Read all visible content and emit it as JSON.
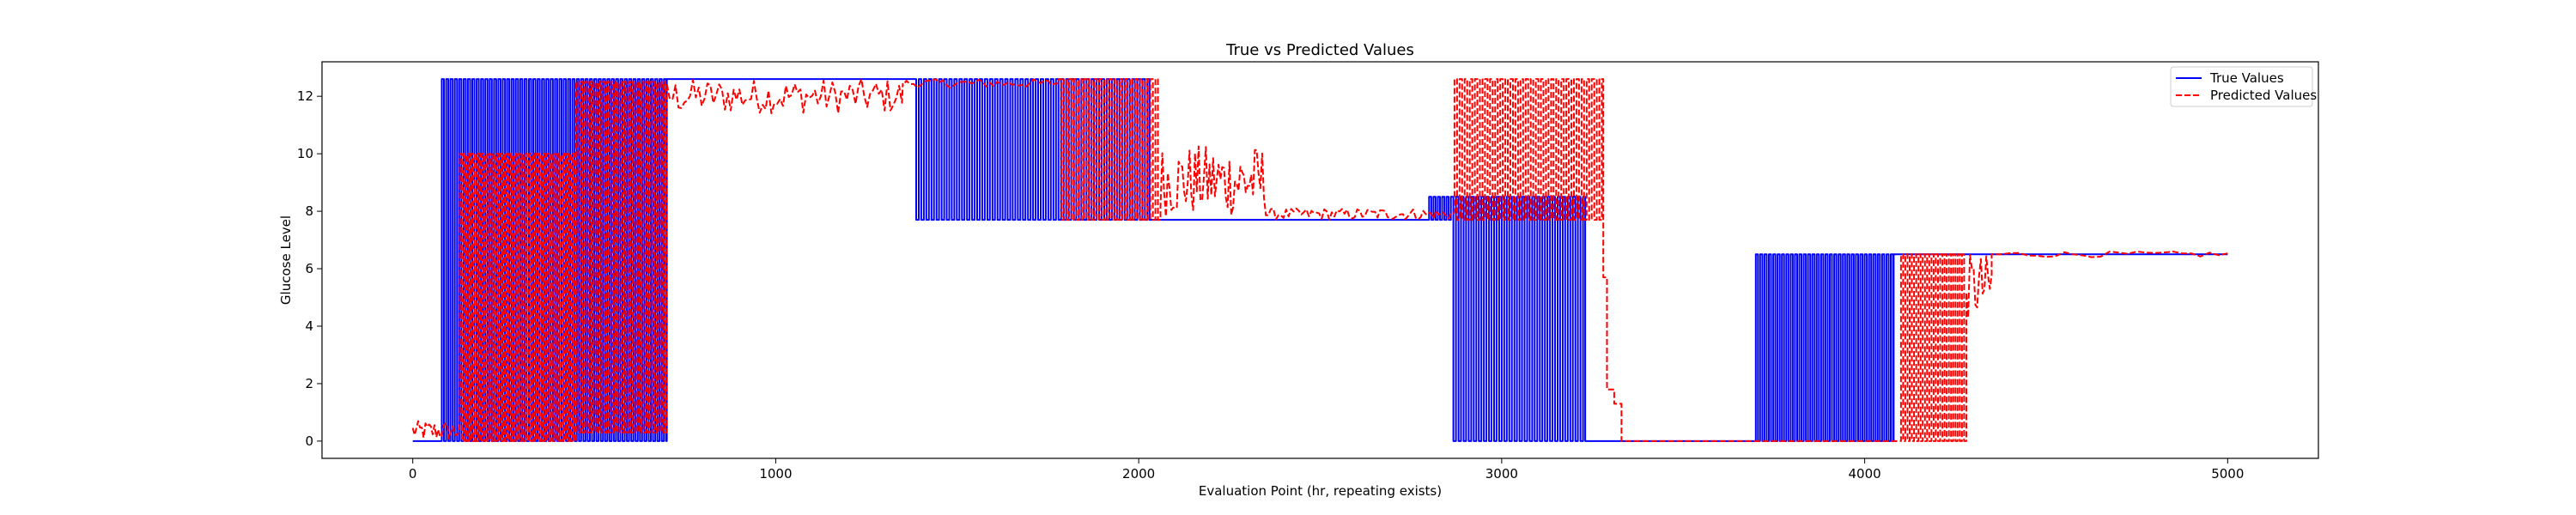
{
  "chart_data": {
    "type": "line",
    "title": "True vs Predicted Values",
    "xlabel": "Evaluation Point (hr, repeating exists)",
    "ylabel": "Glucose Level",
    "xlim": [
      -250,
      5250
    ],
    "ylim": [
      -0.6,
      13.2
    ],
    "xticks": [
      0,
      1000,
      2000,
      3000,
      4000,
      5000
    ],
    "yticks": [
      0,
      2,
      4,
      6,
      8,
      10,
      12
    ],
    "grid": false,
    "legend_position": "top-right",
    "series": [
      {
        "name": "True Values",
        "color": "#0000ff",
        "style": "solid",
        "segments": [
          {
            "x_start": 0,
            "x_end": 80,
            "pattern": "flat",
            "level": 0
          },
          {
            "x_start": 80,
            "x_end": 700,
            "pattern": "oscillate",
            "low": 0,
            "high": 12.6,
            "period": 12
          },
          {
            "x_start": 700,
            "x_end": 1380,
            "pattern": "flat",
            "level": 12.6
          },
          {
            "x_start": 1380,
            "x_end": 2030,
            "pattern": "oscillate",
            "low": 7.7,
            "high": 12.6,
            "period": 14
          },
          {
            "x_start": 2030,
            "x_end": 2800,
            "pattern": "flat",
            "level": 7.7
          },
          {
            "x_start": 2800,
            "x_end": 2860,
            "pattern": "oscillate",
            "low": 7.7,
            "high": 8.5,
            "period": 12
          },
          {
            "x_start": 2860,
            "x_end": 3230,
            "pattern": "oscillate",
            "low": 0,
            "high": 8.5,
            "period": 14
          },
          {
            "x_start": 3230,
            "x_end": 3700,
            "pattern": "flat",
            "level": 0
          },
          {
            "x_start": 3700,
            "x_end": 4080,
            "pattern": "oscillate",
            "low": 0,
            "high": 6.5,
            "period": 12
          },
          {
            "x_start": 4080,
            "x_end": 5000,
            "pattern": "flat",
            "level": 6.5
          }
        ]
      },
      {
        "name": "Predicted Values",
        "color": "#ff0000",
        "style": "dashed",
        "segments": [
          {
            "x_start": 0,
            "x_end": 130,
            "pattern": "noise",
            "low": 0,
            "high": 0.7,
            "period": 10
          },
          {
            "x_start": 130,
            "x_end": 450,
            "pattern": "oscillate",
            "low": 0,
            "high": 10,
            "period": 10
          },
          {
            "x_start": 450,
            "x_end": 700,
            "pattern": "oscillate",
            "low": 0.3,
            "high": 12.5,
            "period": 12
          },
          {
            "x_start": 700,
            "x_end": 1350,
            "pattern": "noise",
            "low": 11.4,
            "high": 12.6,
            "period": 16
          },
          {
            "x_start": 1350,
            "x_end": 1780,
            "pattern": "noise",
            "low": 12.3,
            "high": 12.6,
            "period": 20
          },
          {
            "x_start": 1780,
            "x_end": 2060,
            "pattern": "oscillate",
            "low": 7.7,
            "high": 12.6,
            "period": 14
          },
          {
            "x_start": 2060,
            "x_end": 2350,
            "pattern": "noise",
            "low": 7.8,
            "high": 10.3,
            "period": 10
          },
          {
            "x_start": 2350,
            "x_end": 2870,
            "pattern": "noise",
            "low": 7.7,
            "high": 8.1,
            "period": 14
          },
          {
            "x_start": 2870,
            "x_end": 3280,
            "pattern": "oscillate",
            "low": 7.7,
            "high": 12.6,
            "period": 14
          },
          {
            "x_start": 3280,
            "x_end": 3290,
            "pattern": "flat",
            "level": 5.7
          },
          {
            "x_start": 3290,
            "x_end": 3310,
            "pattern": "flat",
            "level": 1.8
          },
          {
            "x_start": 3310,
            "x_end": 3330,
            "pattern": "flat",
            "level": 1.3
          },
          {
            "x_start": 3330,
            "x_end": 4100,
            "pattern": "flat",
            "level": 0
          },
          {
            "x_start": 4100,
            "x_end": 4280,
            "pattern": "oscillate",
            "low": 0,
            "high": 6.5,
            "period": 12
          },
          {
            "x_start": 4280,
            "x_end": 4350,
            "pattern": "noise",
            "low": 4.2,
            "high": 6.5,
            "period": 10
          },
          {
            "x_start": 4350,
            "x_end": 5000,
            "pattern": "noise",
            "low": 6.4,
            "high": 6.6,
            "period": 50
          }
        ]
      }
    ]
  }
}
